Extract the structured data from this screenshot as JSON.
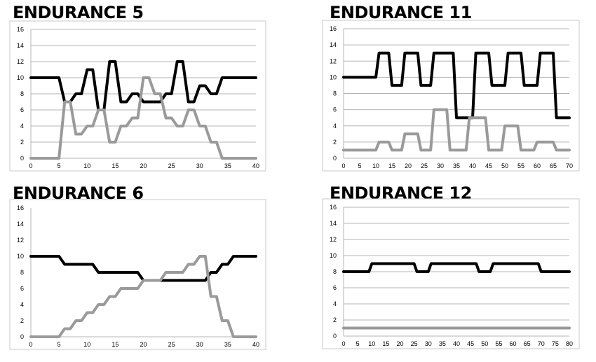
{
  "chart_data": [
    {
      "type": "line",
      "title": "ENDURANCE 5",
      "xlim": [
        0,
        40
      ],
      "xticks": [
        0,
        5,
        10,
        15,
        20,
        25,
        30,
        35,
        40
      ],
      "ylim": [
        0,
        16
      ],
      "yticks": [
        0,
        2,
        4,
        6,
        8,
        10,
        12,
        14,
        16
      ],
      "grid": true,
      "series": [
        {
          "color": "#000000",
          "points": [
            [
              0,
              10
            ],
            [
              5,
              10
            ],
            [
              6,
              7
            ],
            [
              7,
              7
            ],
            [
              8,
              8
            ],
            [
              9,
              8
            ],
            [
              10,
              11
            ],
            [
              11,
              11
            ],
            [
              12,
              6
            ],
            [
              13,
              6
            ],
            [
              14,
              12
            ],
            [
              15,
              12
            ],
            [
              16,
              7
            ],
            [
              17,
              7
            ],
            [
              18,
              8
            ],
            [
              19,
              8
            ],
            [
              20,
              7
            ],
            [
              21,
              7
            ],
            [
              23,
              7
            ],
            [
              24,
              8
            ],
            [
              25,
              8
            ],
            [
              26,
              12
            ],
            [
              27,
              12
            ],
            [
              28,
              7
            ],
            [
              29,
              7
            ],
            [
              30,
              9
            ],
            [
              31,
              9
            ],
            [
              32,
              8
            ],
            [
              33,
              8
            ],
            [
              34,
              10
            ],
            [
              40,
              10
            ]
          ]
        },
        {
          "color": "#9a9a9a",
          "points": [
            [
              0,
              0
            ],
            [
              5,
              0
            ],
            [
              6,
              7
            ],
            [
              7,
              7
            ],
            [
              8,
              3
            ],
            [
              9,
              3
            ],
            [
              10,
              4
            ],
            [
              11,
              4
            ],
            [
              12,
              6
            ],
            [
              13,
              6
            ],
            [
              14,
              2
            ],
            [
              15,
              2
            ],
            [
              16,
              4
            ],
            [
              17,
              4
            ],
            [
              18,
              5
            ],
            [
              19,
              5
            ],
            [
              20,
              10
            ],
            [
              21,
              10
            ],
            [
              22,
              8
            ],
            [
              23,
              8
            ],
            [
              24,
              5
            ],
            [
              25,
              5
            ],
            [
              26,
              4
            ],
            [
              27,
              4
            ],
            [
              28,
              6
            ],
            [
              29,
              6
            ],
            [
              30,
              4
            ],
            [
              31,
              4
            ],
            [
              32,
              2
            ],
            [
              33,
              2
            ],
            [
              34,
              0
            ],
            [
              40,
              0
            ]
          ]
        }
      ]
    },
    {
      "type": "line",
      "title": "ENDURANCE 11",
      "xlim": [
        0,
        70
      ],
      "xticks": [
        0,
        5,
        10,
        15,
        20,
        25,
        30,
        35,
        40,
        45,
        50,
        55,
        60,
        65,
        70
      ],
      "ylim": [
        0,
        16
      ],
      "yticks": [
        0,
        2,
        4,
        6,
        8,
        10,
        12,
        14,
        16
      ],
      "grid": true,
      "series": [
        {
          "color": "#000000",
          "points": [
            [
              0,
              10
            ],
            [
              10,
              10
            ],
            [
              11,
              13
            ],
            [
              14,
              13
            ],
            [
              15,
              9
            ],
            [
              18,
              9
            ],
            [
              19,
              13
            ],
            [
              23,
              13
            ],
            [
              24,
              9
            ],
            [
              27,
              9
            ],
            [
              28,
              13
            ],
            [
              34,
              13
            ],
            [
              35,
              5
            ],
            [
              40,
              5
            ],
            [
              41,
              13
            ],
            [
              45,
              13
            ],
            [
              46,
              9
            ],
            [
              50,
              9
            ],
            [
              51,
              13
            ],
            [
              55,
              13
            ],
            [
              56,
              9
            ],
            [
              60,
              9
            ],
            [
              61,
              13
            ],
            [
              65,
              13
            ],
            [
              66,
              5
            ],
            [
              70,
              5
            ]
          ]
        },
        {
          "color": "#9a9a9a",
          "points": [
            [
              0,
              1
            ],
            [
              10,
              1
            ],
            [
              11,
              2
            ],
            [
              14,
              2
            ],
            [
              15,
              1
            ],
            [
              18,
              1
            ],
            [
              19,
              3
            ],
            [
              23,
              3
            ],
            [
              24,
              1
            ],
            [
              27,
              1
            ],
            [
              28,
              6
            ],
            [
              32,
              6
            ],
            [
              33,
              1
            ],
            [
              38,
              1
            ],
            [
              39,
              5
            ],
            [
              44,
              5
            ],
            [
              45,
              1
            ],
            [
              49,
              1
            ],
            [
              50,
              4
            ],
            [
              54,
              4
            ],
            [
              55,
              1
            ],
            [
              59,
              1
            ],
            [
              60,
              2
            ],
            [
              65,
              2
            ],
            [
              66,
              1
            ],
            [
              70,
              1
            ]
          ]
        }
      ]
    },
    {
      "type": "line",
      "title": "ENDURANCE 6",
      "xlim": [
        0,
        40
      ],
      "xticks": [
        0,
        5,
        10,
        15,
        20,
        25,
        30,
        35,
        40
      ],
      "ylim": [
        0,
        16
      ],
      "yticks": [
        0,
        2,
        4,
        6,
        8,
        10,
        12,
        14,
        16
      ],
      "grid": false,
      "series": [
        {
          "color": "#000000",
          "points": [
            [
              0,
              10
            ],
            [
              5,
              10
            ],
            [
              6,
              9
            ],
            [
              11,
              9
            ],
            [
              12,
              8
            ],
            [
              19,
              8
            ],
            [
              20,
              7
            ],
            [
              31,
              7
            ],
            [
              32,
              8
            ],
            [
              33,
              8
            ],
            [
              34,
              9
            ],
            [
              35,
              9
            ],
            [
              36,
              10
            ],
            [
              40,
              10
            ]
          ]
        },
        {
          "color": "#9a9a9a",
          "points": [
            [
              0,
              0
            ],
            [
              5,
              0
            ],
            [
              6,
              1
            ],
            [
              7,
              1
            ],
            [
              8,
              2
            ],
            [
              9,
              2
            ],
            [
              10,
              3
            ],
            [
              11,
              3
            ],
            [
              12,
              4
            ],
            [
              13,
              4
            ],
            [
              14,
              5
            ],
            [
              15,
              5
            ],
            [
              16,
              6
            ],
            [
              19,
              6
            ],
            [
              20,
              7
            ],
            [
              23,
              7
            ],
            [
              24,
              8
            ],
            [
              27,
              8
            ],
            [
              28,
              9
            ],
            [
              29,
              9
            ],
            [
              30,
              10
            ],
            [
              31,
              10
            ],
            [
              32,
              5
            ],
            [
              33,
              5
            ],
            [
              34,
              2
            ],
            [
              35,
              2
            ],
            [
              36,
              0
            ],
            [
              40,
              0
            ]
          ]
        }
      ]
    },
    {
      "type": "line",
      "title": "ENDURANCE 12",
      "xlim": [
        0,
        80
      ],
      "xticks": [
        0,
        5,
        10,
        15,
        20,
        25,
        30,
        35,
        40,
        45,
        50,
        55,
        60,
        65,
        70,
        75,
        80
      ],
      "ylim": [
        0,
        16
      ],
      "yticks": [
        0,
        2,
        4,
        6,
        8,
        10,
        12,
        14,
        16
      ],
      "grid": true,
      "series": [
        {
          "color": "#000000",
          "points": [
            [
              0,
              8
            ],
            [
              9,
              8
            ],
            [
              10,
              9
            ],
            [
              25,
              9
            ],
            [
              26,
              8
            ],
            [
              30,
              8
            ],
            [
              31,
              9
            ],
            [
              47,
              9
            ],
            [
              48,
              8
            ],
            [
              52,
              8
            ],
            [
              53,
              9
            ],
            [
              69,
              9
            ],
            [
              70,
              8
            ],
            [
              80,
              8
            ]
          ]
        },
        {
          "color": "#9a9a9a",
          "points": [
            [
              0,
              1
            ],
            [
              80,
              1
            ]
          ]
        }
      ]
    }
  ]
}
